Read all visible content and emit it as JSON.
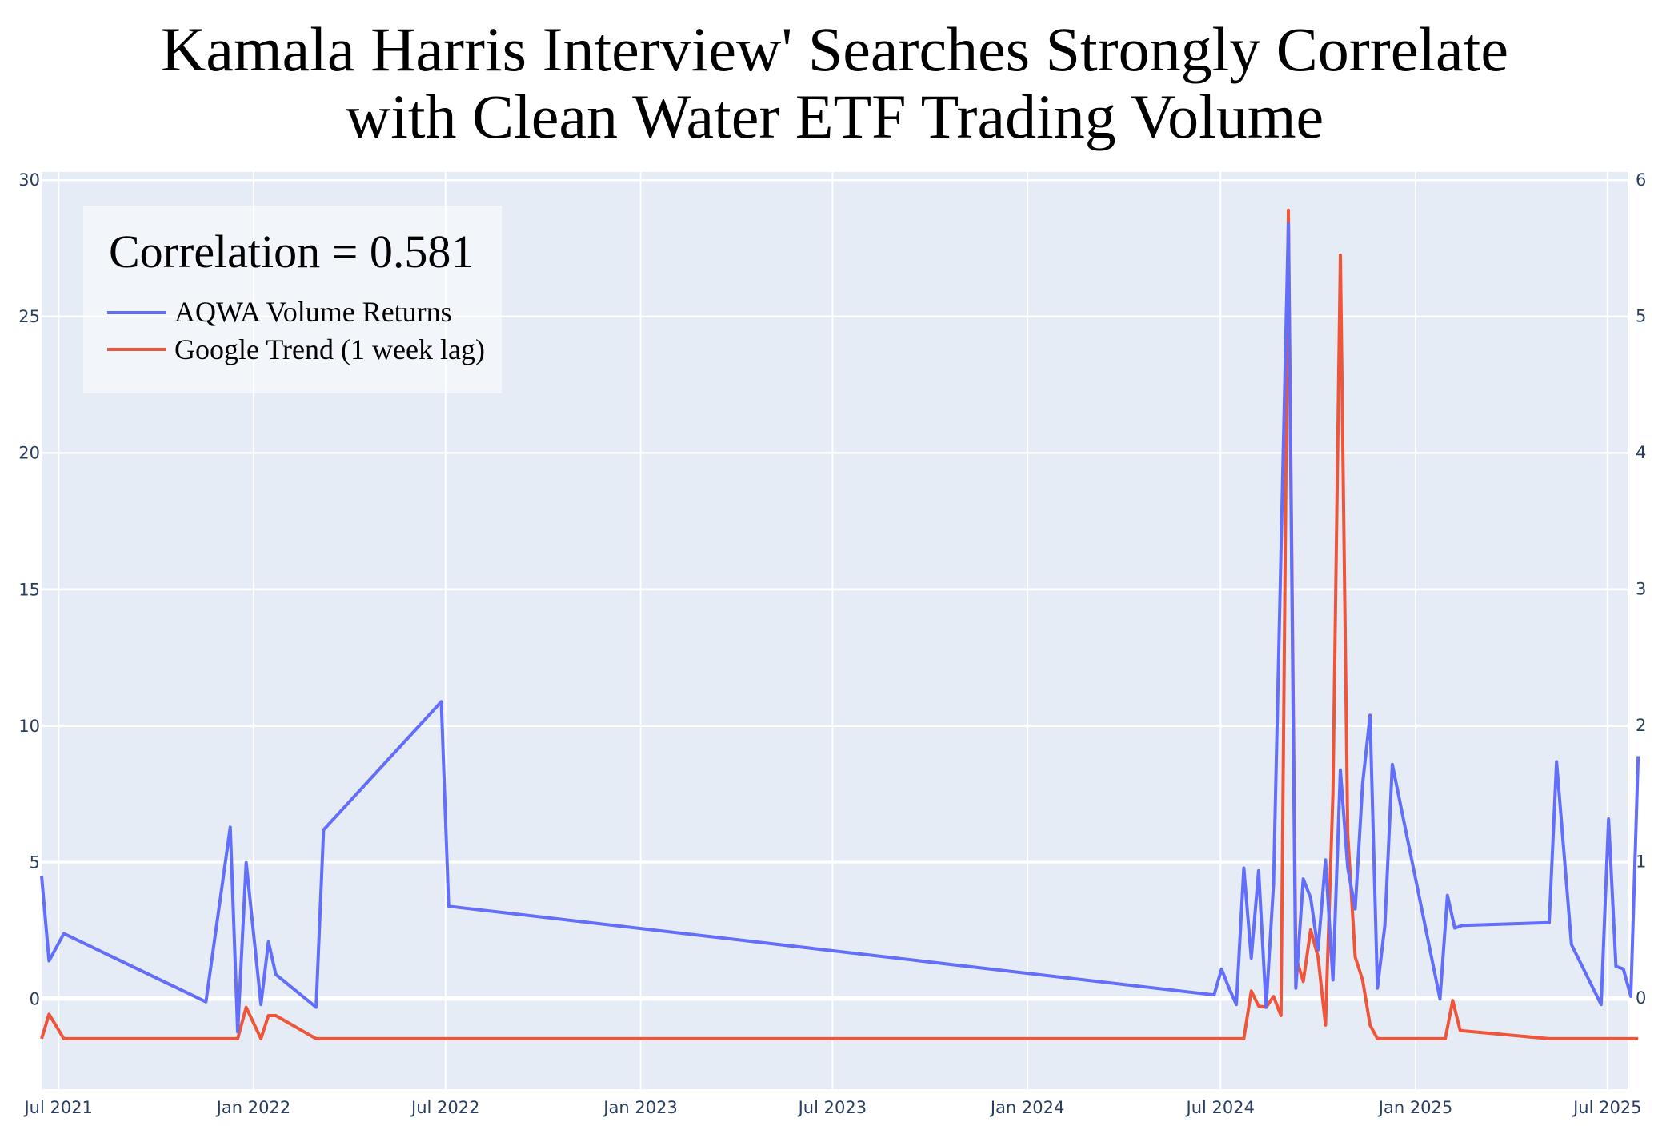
{
  "chart_data": {
    "type": "line",
    "title_lines": [
      "Kamala Harris Interview' Searches Strongly Correlate",
      "with Clean Water ETF Trading Volume"
    ],
    "annotation": "Correlation = 0.581",
    "legend_position": "top-left",
    "grid": true,
    "x_axis": {
      "type": "date",
      "range": [
        "2021-06-15",
        "2025-07-20"
      ],
      "ticks": [
        {
          "date": "2021-07-01",
          "label": "Jul 2021"
        },
        {
          "date": "2022-01-01",
          "label": "Jan 2022"
        },
        {
          "date": "2022-07-01",
          "label": "Jul 2022"
        },
        {
          "date": "2023-01-01",
          "label": "Jan 2023"
        },
        {
          "date": "2023-07-01",
          "label": "Jul 2023"
        },
        {
          "date": "2024-01-01",
          "label": "Jan 2024"
        },
        {
          "date": "2024-07-01",
          "label": "Jul 2024"
        },
        {
          "date": "2025-01-01",
          "label": "Jan 2025"
        },
        {
          "date": "2025-07-01",
          "label": "Jul 2025"
        }
      ]
    },
    "y_left": {
      "range": [
        -3.3,
        30.3
      ],
      "ticks": [
        0,
        5,
        10,
        15,
        20,
        25,
        30
      ],
      "tick_labels": [
        "0",
        "5",
        "10",
        "15",
        "20",
        "25",
        "30"
      ]
    },
    "y_right": {
      "range": [
        -0.67,
        6.06
      ],
      "ticks": [
        0,
        1,
        2,
        3,
        4,
        5,
        6
      ],
      "tick_labels": [
        "0",
        "1",
        "2",
        "3",
        "4",
        "5",
        "6"
      ]
    },
    "series": [
      {
        "name": "AQWA Volume Returns",
        "color": "#636efa",
        "axis": "left",
        "points": [
          [
            "2021-06-15",
            4.5
          ],
          [
            "2021-06-22",
            1.4
          ],
          [
            "2021-07-06",
            2.4
          ],
          [
            "2021-11-17",
            -0.1
          ],
          [
            "2021-12-10",
            6.3
          ],
          [
            "2021-12-17",
            -1.2
          ],
          [
            "2021-12-25",
            5.0
          ],
          [
            "2022-01-08",
            -0.2
          ],
          [
            "2022-01-15",
            2.1
          ],
          [
            "2022-01-22",
            0.9
          ],
          [
            "2022-03-01",
            -0.3
          ],
          [
            "2022-03-08",
            6.2
          ],
          [
            "2022-06-27",
            10.9
          ],
          [
            "2022-07-04",
            3.4
          ],
          [
            "2024-06-25",
            0.15
          ],
          [
            "2024-07-02",
            1.1
          ],
          [
            "2024-07-09",
            0.4
          ],
          [
            "2024-07-16",
            -0.2
          ],
          [
            "2024-07-23",
            4.8
          ],
          [
            "2024-07-30",
            1.5
          ],
          [
            "2024-08-06",
            4.7
          ],
          [
            "2024-08-13",
            -0.3
          ],
          [
            "2024-08-20",
            4.2
          ],
          [
            "2024-09-03",
            28.4
          ],
          [
            "2024-09-10",
            0.4
          ],
          [
            "2024-09-17",
            4.4
          ],
          [
            "2024-09-24",
            3.7
          ],
          [
            "2024-10-01",
            1.8
          ],
          [
            "2024-10-08",
            5.1
          ],
          [
            "2024-10-15",
            0.7
          ],
          [
            "2024-10-22",
            8.4
          ],
          [
            "2024-10-29",
            4.8
          ],
          [
            "2024-11-05",
            3.3
          ],
          [
            "2024-11-12",
            7.9
          ],
          [
            "2024-11-19",
            10.4
          ],
          [
            "2024-11-26",
            0.4
          ],
          [
            "2024-12-03",
            2.7
          ],
          [
            "2024-12-10",
            8.6
          ],
          [
            "2025-01-24",
            0.0
          ],
          [
            "2025-01-31",
            3.8
          ],
          [
            "2025-02-07",
            2.6
          ],
          [
            "2025-02-14",
            2.7
          ],
          [
            "2025-05-07",
            2.8
          ],
          [
            "2025-05-14",
            8.7
          ],
          [
            "2025-05-28",
            2.0
          ],
          [
            "2025-06-25",
            -0.2
          ],
          [
            "2025-07-02",
            6.6
          ],
          [
            "2025-07-09",
            1.2
          ],
          [
            "2025-07-16",
            1.1
          ],
          [
            "2025-07-23",
            0.1
          ],
          [
            "2025-07-30",
            8.9
          ]
        ]
      },
      {
        "name": "Google Trend (1 week lag)",
        "color": "#ef553b",
        "axis": "right",
        "points": [
          [
            "2021-06-15",
            -0.3
          ],
          [
            "2021-06-22",
            -0.12
          ],
          [
            "2021-07-06",
            -0.3
          ],
          [
            "2021-12-17",
            -0.3
          ],
          [
            "2021-12-25",
            -0.07
          ],
          [
            "2022-01-08",
            -0.3
          ],
          [
            "2022-01-15",
            -0.13
          ],
          [
            "2022-01-22",
            -0.13
          ],
          [
            "2022-03-01",
            -0.3
          ],
          [
            "2024-07-23",
            -0.3
          ],
          [
            "2024-07-30",
            0.05
          ],
          [
            "2024-08-06",
            -0.06
          ],
          [
            "2024-08-13",
            -0.07
          ],
          [
            "2024-08-20",
            0.01
          ],
          [
            "2024-08-27",
            -0.13
          ],
          [
            "2024-09-03",
            5.78
          ],
          [
            "2024-09-10",
            0.3
          ],
          [
            "2024-09-17",
            0.12
          ],
          [
            "2024-09-24",
            0.5
          ],
          [
            "2024-10-01",
            0.3
          ],
          [
            "2024-10-08",
            -0.2
          ],
          [
            "2024-10-15",
            1.5
          ],
          [
            "2024-10-22",
            5.45
          ],
          [
            "2024-10-29",
            1.2
          ],
          [
            "2024-11-05",
            0.3
          ],
          [
            "2024-11-12",
            0.13
          ],
          [
            "2024-11-19",
            -0.2
          ],
          [
            "2024-11-26",
            -0.3
          ],
          [
            "2025-01-29",
            -0.3
          ],
          [
            "2025-02-05",
            -0.02
          ],
          [
            "2025-02-12",
            -0.24
          ],
          [
            "2025-05-07",
            -0.3
          ],
          [
            "2025-07-30",
            -0.3
          ]
        ]
      }
    ]
  }
}
